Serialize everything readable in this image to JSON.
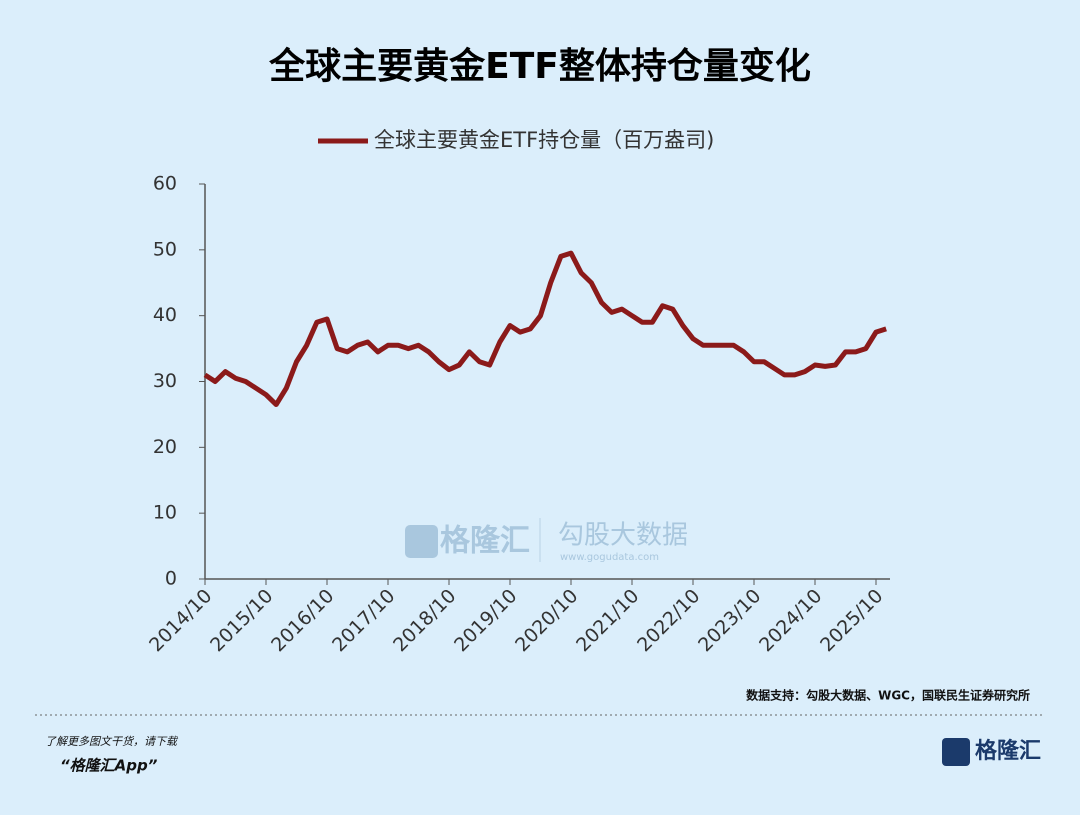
{
  "chart_data": {
    "type": "line",
    "title": "全球主要黄金ETF整体持仓量变化",
    "x": [
      "2014/10",
      "2014/12",
      "2015/02",
      "2015/04",
      "2015/06",
      "2015/08",
      "2015/10",
      "2015/12",
      "2016/02",
      "2016/04",
      "2016/06",
      "2016/08",
      "2016/10",
      "2016/12",
      "2017/02",
      "2017/04",
      "2017/06",
      "2017/08",
      "2017/10",
      "2017/12",
      "2018/02",
      "2018/04",
      "2018/06",
      "2018/08",
      "2018/10",
      "2018/12",
      "2019/02",
      "2019/04",
      "2019/06",
      "2019/08",
      "2019/10",
      "2019/12",
      "2020/02",
      "2020/04",
      "2020/06",
      "2020/08",
      "2020/10",
      "2020/12",
      "2021/02",
      "2021/04",
      "2021/06",
      "2021/08",
      "2021/10",
      "2021/12",
      "2022/02",
      "2022/04",
      "2022/06",
      "2022/08",
      "2022/10",
      "2022/12",
      "2023/02",
      "2023/04",
      "2023/06",
      "2023/08",
      "2023/10",
      "2023/12",
      "2024/02",
      "2024/04",
      "2024/06",
      "2024/08",
      "2024/10",
      "2024/12",
      "2025/02",
      "2025/04",
      "2025/06",
      "2025/08",
      "2025/10",
      "2025/12"
    ],
    "series": [
      {
        "name": "全球主要黄金ETF持仓量（百万盎司)",
        "color": "#8b1a1a",
        "values": [
          31,
          30,
          31.5,
          30.5,
          30,
          29,
          28,
          26.5,
          29,
          33,
          35.5,
          39,
          39.5,
          35,
          34.5,
          35.5,
          36,
          34.5,
          35.5,
          35.5,
          35,
          35.5,
          34.5,
          33,
          31.8,
          32.5,
          34.5,
          33,
          32.5,
          36,
          38.5,
          37.5,
          38,
          40,
          45,
          49,
          49.5,
          46.5,
          45,
          42,
          40.5,
          41,
          40,
          39,
          39,
          41.5,
          41,
          38.5,
          36.5,
          35.5,
          35.5,
          35.5,
          35.5,
          34.5,
          33,
          33,
          32,
          31,
          31,
          31.5,
          32.5,
          32.3,
          32.5,
          34.5,
          34.5,
          35,
          37.5,
          38
        ]
      }
    ],
    "xticks": [
      "2014/10",
      "2015/10",
      "2016/10",
      "2017/10",
      "2018/10",
      "2019/10",
      "2020/10",
      "2021/10",
      "2022/10",
      "2023/10",
      "2024/10",
      "2025/10"
    ],
    "ylim": [
      0,
      60
    ],
    "yticks": [
      0,
      10,
      20,
      30,
      40,
      50,
      60
    ],
    "grid": false,
    "legend": "top",
    "source": "数据支持：勾股大数据、WGC，国联民生证券研究所",
    "watermark": [
      "格隆汇",
      "勾股大数据",
      "www.gogudata.com"
    ]
  },
  "footer": {
    "note": "了解更多图文干货，请下载",
    "app": "“格隆汇App”",
    "logo": "格隆汇"
  }
}
